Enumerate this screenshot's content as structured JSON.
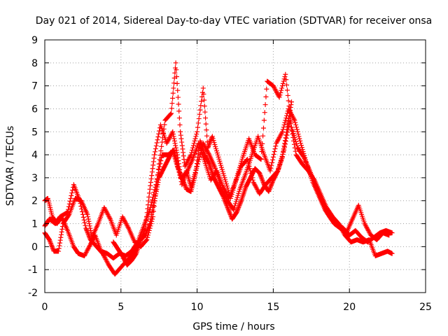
{
  "chart_data": {
    "type": "scatter",
    "title": "Day 021 of 2014, Sidereal Day-to-day VTEC variation (SDTVAR) for receiver onsa",
    "xlabel": "GPS time / hours",
    "ylabel": "SDTVAR / TECUs",
    "xlim": [
      0,
      25
    ],
    "ylim": [
      -2,
      9
    ],
    "xticks": [
      "0",
      "5",
      "10",
      "15",
      "20",
      "25"
    ],
    "yticks": [
      "-2",
      "-1",
      "0",
      "1",
      "2",
      "3",
      "4",
      "5",
      "6",
      "7",
      "8",
      "9"
    ],
    "grid": true,
    "marker": "+",
    "color": "#ff0000",
    "series": [
      {
        "name": "trace-1",
        "x": [
          0.0,
          0.3,
          0.7,
          1.0,
          1.5,
          1.9,
          2.3,
          2.7,
          3.0,
          3.4,
          3.8,
          4.2,
          4.6,
          5.0,
          5.4,
          5.8,
          6.2,
          6.6,
          6.9,
          7.2,
          7.6,
          8.0,
          8.4,
          8.7,
          9.0,
          9.3,
          9.6,
          10.0,
          10.4,
          10.8,
          11.2,
          11.6,
          12.0,
          12.4,
          12.8,
          13.2,
          13.6,
          14.0,
          14.4,
          14.8,
          15.2,
          15.6,
          16.0,
          16.4,
          16.8,
          17.2,
          17.6,
          18.0,
          18.4,
          18.8,
          19.2,
          19.6,
          20.0,
          20.4,
          20.8,
          21.2,
          21.6,
          22.0,
          22.4,
          22.8
        ],
        "y": [
          0.9,
          1.2,
          1.0,
          1.3,
          1.5,
          2.7,
          2.0,
          0.8,
          0.3,
          0.0,
          -0.3,
          -0.8,
          -1.2,
          -0.9,
          -0.6,
          -0.3,
          0.1,
          0.8,
          2.5,
          4.0,
          5.3,
          4.5,
          5.0,
          4.0,
          2.7,
          3.3,
          2.6,
          3.5,
          4.5,
          4.0,
          3.4,
          2.5,
          2.0,
          1.6,
          2.5,
          3.2,
          4.0,
          4.8,
          4.0,
          3.3,
          4.5,
          5.0,
          6.0,
          5.5,
          4.5,
          3.6,
          2.8,
          2.2,
          1.6,
          1.2,
          1.0,
          0.8,
          0.5,
          0.7,
          0.4,
          0.2,
          0.4,
          0.6,
          0.7,
          0.6
        ]
      },
      {
        "name": "trace-2",
        "x": [
          0.0,
          0.2,
          0.5,
          0.8,
          1.1,
          1.5,
          1.9,
          2.2,
          2.6,
          3.0,
          3.3,
          3.7,
          4.1,
          4.5,
          4.9,
          5.3,
          5.7,
          6.1,
          6.5,
          6.9,
          7.3,
          7.7,
          8.1,
          8.5,
          8.9,
          9.3,
          9.7,
          10.1,
          10.5,
          10.9,
          11.3,
          11.7,
          12.1,
          12.5,
          12.9,
          13.3,
          13.7,
          14.1,
          14.5,
          14.9,
          15.3,
          15.7,
          16.1,
          16.5,
          16.9,
          17.3,
          17.7,
          18.1,
          18.5,
          18.9,
          19.3,
          19.7,
          20.1,
          20.5,
          20.9,
          21.3,
          21.7,
          22.1,
          22.5,
          22.8
        ],
        "y": [
          2.0,
          2.1,
          1.3,
          1.0,
          1.3,
          0.7,
          0.0,
          -0.3,
          -0.4,
          0.1,
          0.5,
          -0.2,
          -0.3,
          -0.5,
          -0.3,
          -0.4,
          -0.2,
          0.2,
          0.9,
          1.6,
          2.7,
          4.0,
          4.0,
          4.2,
          3.0,
          3.2,
          3.8,
          4.5,
          3.7,
          2.9,
          3.3,
          2.6,
          2.1,
          2.8,
          3.5,
          3.8,
          2.8,
          2.3,
          2.7,
          3.0,
          3.3,
          4.2,
          5.5,
          4.0,
          3.6,
          3.3,
          2.9,
          2.3,
          1.7,
          1.3,
          1.0,
          0.5,
          0.2,
          0.3,
          0.2,
          0.3,
          -0.4,
          -0.3,
          -0.2,
          -0.3
        ]
      },
      {
        "name": "trace-3",
        "x": [
          0.0,
          0.3,
          0.6,
          0.9,
          1.2,
          1.6,
          2.0,
          2.4,
          2.8,
          3.1,
          3.5,
          3.9,
          4.3,
          4.7,
          5.1,
          5.5,
          5.9,
          6.3,
          6.7,
          7.1,
          7.5,
          7.9,
          8.3,
          8.6,
          8.9,
          9.2,
          9.6,
          10.0,
          10.4,
          10.7,
          11.0,
          11.4,
          11.8,
          12.2,
          12.6,
          13.0,
          13.4,
          13.8,
          14.2,
          14.6,
          15.0,
          15.4,
          15.8,
          16.2,
          16.6,
          17.0,
          17.4,
          17.8,
          18.2,
          18.6,
          19.0,
          19.4,
          19.8,
          20.2,
          20.6,
          21.0,
          21.4,
          21.8,
          22.2,
          22.6
        ],
        "y": [
          0.6,
          0.3,
          -0.2,
          -0.2,
          1.0,
          1.4,
          2.1,
          2.0,
          1.4,
          0.4,
          1.0,
          1.7,
          1.2,
          0.5,
          1.3,
          0.8,
          0.2,
          0.0,
          0.3,
          1.3,
          3.6,
          5.5,
          5.8,
          8.0,
          5.0,
          3.5,
          4.0,
          5.0,
          6.9,
          4.3,
          4.8,
          3.9,
          3.0,
          2.1,
          3.0,
          3.9,
          4.7,
          4.0,
          3.8,
          7.2,
          7.0,
          6.5,
          7.5,
          5.2,
          4.3,
          3.9,
          3.3,
          2.6,
          2.0,
          1.4,
          1.0,
          0.8,
          0.6,
          1.2,
          1.8,
          1.0,
          0.5,
          0.3,
          0.6,
          0.5
        ]
      },
      {
        "name": "trace-4",
        "x": [
          4.5,
          4.8,
          5.1,
          5.4,
          5.7,
          6.0,
          6.3,
          6.6,
          6.9,
          7.2,
          7.5,
          7.8,
          8.1,
          8.4,
          8.7,
          9.0,
          9.3,
          9.6,
          9.9,
          10.2,
          10.5,
          10.8,
          11.1,
          11.4,
          11.7,
          12.0,
          12.3,
          12.6,
          12.9,
          13.2,
          13.5,
          13.8,
          14.1,
          14.4,
          14.7,
          15.0,
          15.3,
          15.6,
          15.9,
          16.2
        ],
        "y": [
          0.2,
          -0.1,
          -0.4,
          -0.8,
          -0.6,
          -0.3,
          0.3,
          0.5,
          1.0,
          2.0,
          3.0,
          3.4,
          3.8,
          4.2,
          3.5,
          3.0,
          2.5,
          2.4,
          3.2,
          4.6,
          4.0,
          3.6,
          3.0,
          2.6,
          2.2,
          1.7,
          1.2,
          1.5,
          2.0,
          2.6,
          3.0,
          3.4,
          3.2,
          2.7,
          2.4,
          2.9,
          3.3,
          3.9,
          5.1,
          6.3
        ]
      }
    ]
  }
}
